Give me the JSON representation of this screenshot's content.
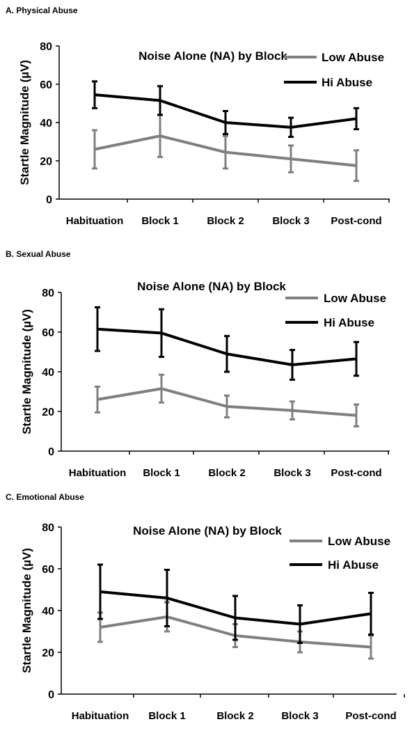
{
  "chart_data": [
    {
      "panel_label": "A. Physical Abuse",
      "type": "line",
      "title": "Noise Alone (NA) by Block",
      "ylabel": "Startle Magnitude (µV)",
      "xlabel": "",
      "categories": [
        "Habituation",
        "Block 1",
        "Block 2",
        "Block 3",
        "Post-cond"
      ],
      "ylim": [
        0,
        80
      ],
      "yticks": [
        "0",
        "20",
        "40",
        "60",
        "80"
      ],
      "legend_position": "top-right",
      "grid": false,
      "series": [
        {
          "name": "Low Abuse",
          "color": "#7f7f7f",
          "values": [
            26,
            33,
            24.5,
            21,
            17.5
          ],
          "error": [
            10,
            11,
            8.5,
            7,
            8
          ]
        },
        {
          "name": "Hi Abuse",
          "color": "#000000",
          "values": [
            54.5,
            51.5,
            40,
            37.5,
            42
          ],
          "error": [
            7,
            7.5,
            6,
            5,
            5.5
          ]
        }
      ]
    },
    {
      "panel_label": "B. Sexual Abuse",
      "type": "line",
      "title": "Noise Alone (NA) by Block",
      "ylabel": "Startle Magnitude (µV)",
      "xlabel": "",
      "categories": [
        "Habituation",
        "Block 1",
        "Block 2",
        "Block 3",
        "Post-cond"
      ],
      "ylim": [
        0,
        80
      ],
      "yticks": [
        "0",
        "20",
        "40",
        "60",
        "80"
      ],
      "legend_position": "top-right",
      "grid": false,
      "series": [
        {
          "name": "Low Abuse",
          "color": "#7f7f7f",
          "values": [
            26,
            31.5,
            22.5,
            20.5,
            18
          ],
          "error": [
            6.5,
            7,
            5.5,
            4.5,
            5.5
          ]
        },
        {
          "name": "Hi Abuse",
          "color": "#000000",
          "values": [
            61.5,
            59.5,
            49,
            43.5,
            46.5
          ],
          "error": [
            11,
            12,
            9,
            7.5,
            8.5
          ]
        }
      ]
    },
    {
      "panel_label": "C. Emotional Abuse",
      "type": "line",
      "title": "Noise Alone (NA) by Block",
      "ylabel": "Startle Magnitude (µV)",
      "xlabel": "",
      "categories": [
        "Habituation",
        "Block 1",
        "Block 2",
        "Block 3",
        "Post-cond"
      ],
      "ylim": [
        0,
        80
      ],
      "yticks": [
        "0",
        "20",
        "40",
        "60",
        "80"
      ],
      "legend_position": "top-right",
      "grid": false,
      "series": [
        {
          "name": "Low Abuse",
          "color": "#7f7f7f",
          "values": [
            32,
            37,
            28,
            25,
            22.5
          ],
          "error": [
            7,
            7,
            5.5,
            5,
            5.5
          ]
        },
        {
          "name": "Hi Abuse",
          "color": "#000000",
          "values": [
            49,
            46,
            36.5,
            33.5,
            38.5
          ],
          "error": [
            13,
            13.5,
            10.5,
            9,
            10
          ]
        }
      ]
    }
  ]
}
